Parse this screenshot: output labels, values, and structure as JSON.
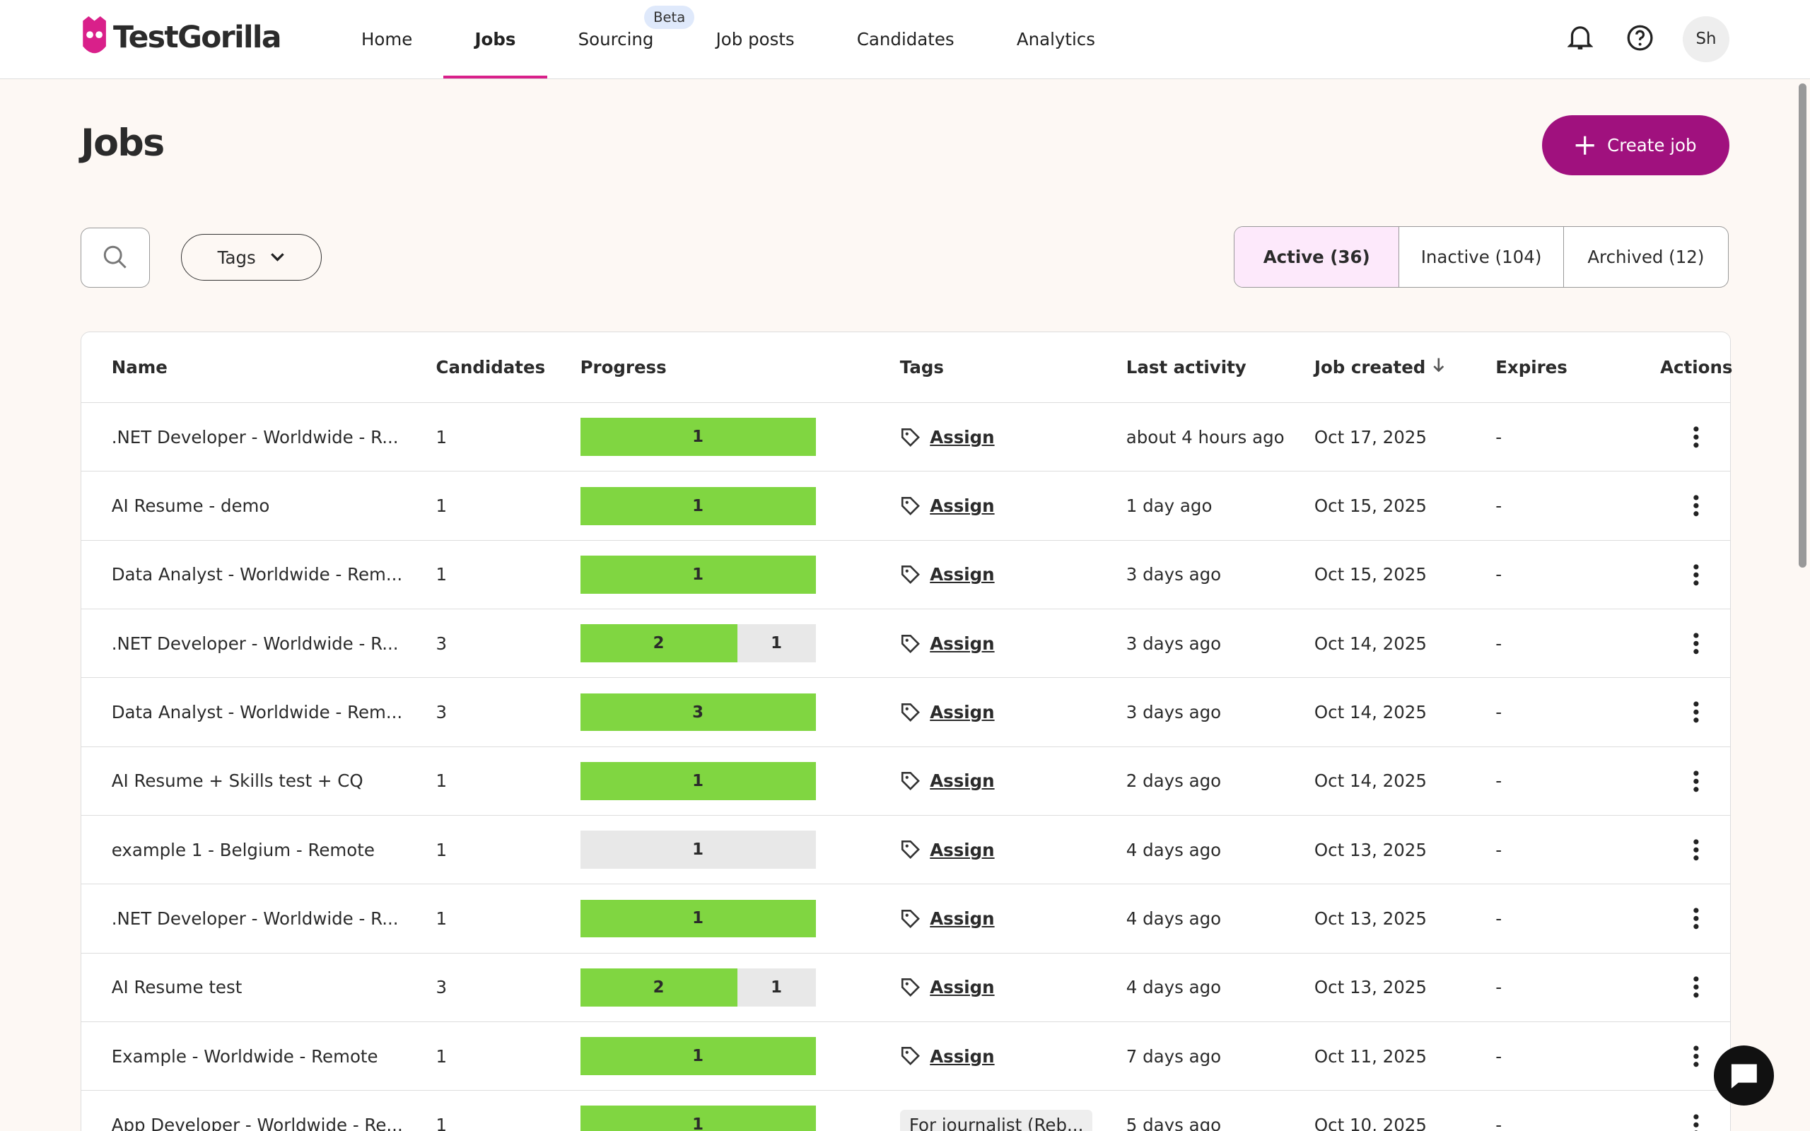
{
  "header": {
    "logo": "TestGorilla",
    "nav": [
      "Home",
      "Jobs",
      "Sourcing",
      "Job posts",
      "Candidates",
      "Analytics"
    ],
    "badge": "Beta",
    "avatar": "Sh"
  },
  "page": {
    "title": "Jobs",
    "create_button": "Create job",
    "tags_filter": "Tags",
    "tabs": [
      "Active (36)",
      "Inactive (104)",
      "Archived (12)"
    ]
  },
  "table": {
    "columns": [
      "Name",
      "Candidates",
      "Progress",
      "Tags",
      "Last activity",
      "Job created",
      "Expires",
      "Actions"
    ],
    "rows": [
      {
        "name": ".NET Developer - Worldwide - R...",
        "candidates": "1",
        "progress": [
          {
            "value": 1,
            "color": "#80d641"
          }
        ],
        "tag": "Assign",
        "last_activity": "about 4 hours ago",
        "created": "Oct 17, 2025",
        "expires": "-"
      },
      {
        "name": "AI Resume - demo",
        "candidates": "1",
        "progress": [
          {
            "value": 1,
            "color": "#80d641"
          }
        ],
        "tag": "Assign",
        "last_activity": "1 day ago",
        "created": "Oct 15, 2025",
        "expires": "-"
      },
      {
        "name": "Data Analyst - Worldwide - Rem...",
        "candidates": "1",
        "progress": [
          {
            "value": 1,
            "color": "#80d641"
          }
        ],
        "tag": "Assign",
        "last_activity": "3 days ago",
        "created": "Oct 15, 2025",
        "expires": "-"
      },
      {
        "name": ".NET Developer - Worldwide - R...",
        "candidates": "3",
        "progress": [
          {
            "value": 2,
            "color": "#80d641"
          },
          {
            "value": 1,
            "color": "#e8e8e8"
          }
        ],
        "tag": "Assign",
        "last_activity": "3 days ago",
        "created": "Oct 14, 2025",
        "expires": "-"
      },
      {
        "name": "Data Analyst - Worldwide - Rem...",
        "candidates": "3",
        "progress": [
          {
            "value": 3,
            "color": "#80d641"
          }
        ],
        "tag": "Assign",
        "last_activity": "3 days ago",
        "created": "Oct 14, 2025",
        "expires": "-"
      },
      {
        "name": "AI Resume + Skills test + CQ",
        "candidates": "1",
        "progress": [
          {
            "value": 1,
            "color": "#80d641"
          }
        ],
        "tag": "Assign",
        "last_activity": "2 days ago",
        "created": "Oct 14, 2025",
        "expires": "-"
      },
      {
        "name": "example 1 - Belgium - Remote",
        "candidates": "1",
        "progress": [
          {
            "value": 1,
            "color": "#e8e8e8"
          }
        ],
        "tag": "Assign",
        "last_activity": "4 days ago",
        "created": "Oct 13, 2025",
        "expires": "-"
      },
      {
        "name": ".NET Developer - Worldwide - R...",
        "candidates": "1",
        "progress": [
          {
            "value": 1,
            "color": "#80d641"
          }
        ],
        "tag": "Assign",
        "last_activity": "4 days ago",
        "created": "Oct 13, 2025",
        "expires": "-"
      },
      {
        "name": "AI Resume test",
        "candidates": "3",
        "progress": [
          {
            "value": 2,
            "color": "#80d641"
          },
          {
            "value": 1,
            "color": "#e8e8e8"
          }
        ],
        "tag": "Assign",
        "last_activity": "4 days ago",
        "created": "Oct 13, 2025",
        "expires": "-"
      },
      {
        "name": "Example - Worldwide - Remote",
        "candidates": "1",
        "progress": [
          {
            "value": 1,
            "color": "#80d641"
          }
        ],
        "tag": "Assign",
        "last_activity": "7 days ago",
        "created": "Oct 11, 2025",
        "expires": "-"
      },
      {
        "name": "App Developer - Worldwide - Re...",
        "candidates": "1",
        "progress": [
          {
            "value": 1,
            "color": "#80d641"
          }
        ],
        "tag": "For journalist (Reb...",
        "last_activity": "5 days ago",
        "created": "Oct 10, 2025",
        "expires": "-"
      }
    ]
  }
}
